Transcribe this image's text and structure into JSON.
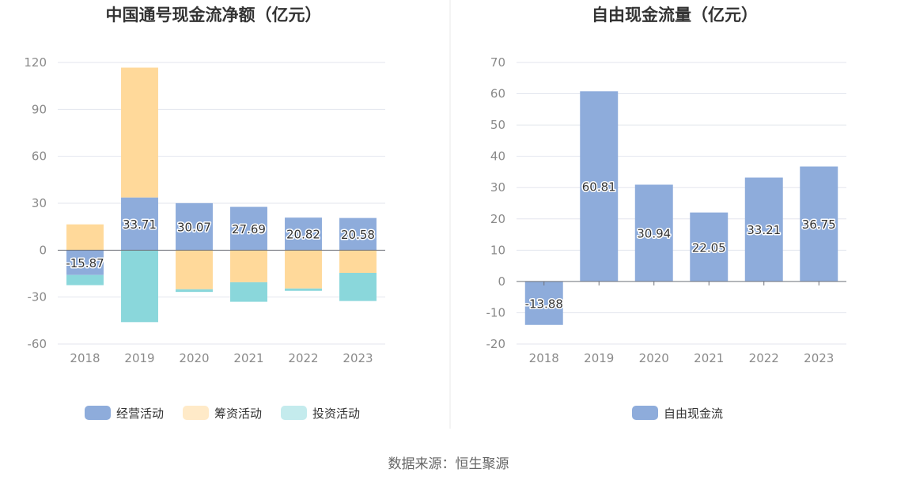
{
  "source": "数据来源：恒生聚源",
  "chart_data": [
    {
      "type": "bar",
      "stacked": true,
      "title": "中国通号现金流净额（亿元）",
      "categories": [
        "2018",
        "2019",
        "2020",
        "2021",
        "2022",
        "2023"
      ],
      "ylim": [
        -60,
        120
      ],
      "yticks": [
        -60,
        -30,
        0,
        30,
        60,
        90,
        120
      ],
      "grid": true,
      "legend_position": "bottom",
      "series": [
        {
          "name": "经营活动",
          "color": "#8eacdb",
          "values": [
            -15.87,
            33.71,
            30.07,
            27.69,
            20.82,
            20.58
          ],
          "show_labels": true
        },
        {
          "name": "筹资活动",
          "color": "#ffd99a",
          "values": [
            16.5,
            83.0,
            -25.0,
            -20.5,
            -24.5,
            -14.5
          ]
        },
        {
          "name": "投资活动",
          "color": "#8ad7db",
          "values": [
            -6.5,
            -46.0,
            -1.7,
            -12.5,
            -1.5,
            -18.0
          ]
        }
      ]
    },
    {
      "type": "bar",
      "title": "自由现金流量（亿元）",
      "categories": [
        "2018",
        "2019",
        "2020",
        "2021",
        "2022",
        "2023"
      ],
      "ylim": [
        -20,
        70
      ],
      "yticks": [
        -20,
        -10,
        0,
        10,
        20,
        30,
        40,
        50,
        60,
        70
      ],
      "grid": true,
      "legend_position": "bottom",
      "series": [
        {
          "name": "自由现金流",
          "color": "#8eacdb",
          "values": [
            -13.88,
            60.81,
            30.94,
            22.05,
            33.21,
            36.75
          ],
          "show_labels": true
        }
      ]
    }
  ]
}
